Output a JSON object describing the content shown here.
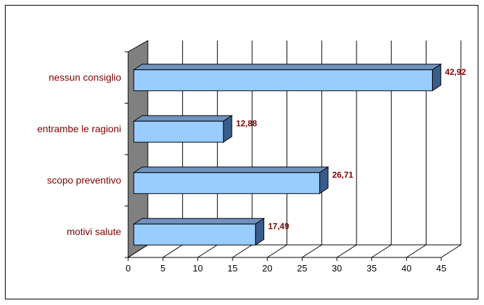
{
  "chart_data": {
    "type": "bar",
    "orientation": "horizontal",
    "style": "3d",
    "categories": [
      "nessun consiglio",
      "entrambe le ragioni",
      "scopo preventivo",
      "motivi salute"
    ],
    "values": [
      42.92,
      12.88,
      26.71,
      17.49
    ],
    "data_labels": [
      "42,92",
      "12,88",
      "26,71",
      "17,49"
    ],
    "x_ticks": [
      "0",
      "5",
      "10",
      "15",
      "20",
      "25",
      "30",
      "35",
      "40",
      "45"
    ],
    "xlim": [
      0,
      45
    ],
    "title": "",
    "xlabel": "",
    "ylabel": "",
    "grid": true,
    "legend": "none",
    "colors": {
      "bar_front": "#99ccff",
      "bar_top": "#6f92bf",
      "bar_side": "#3a5c8c",
      "bar_stroke": "#000000",
      "wall": "#808080",
      "category_text": "#800000",
      "data_label_text": "#800000",
      "tick_text": "#000000",
      "gridline": "#000000"
    }
  }
}
